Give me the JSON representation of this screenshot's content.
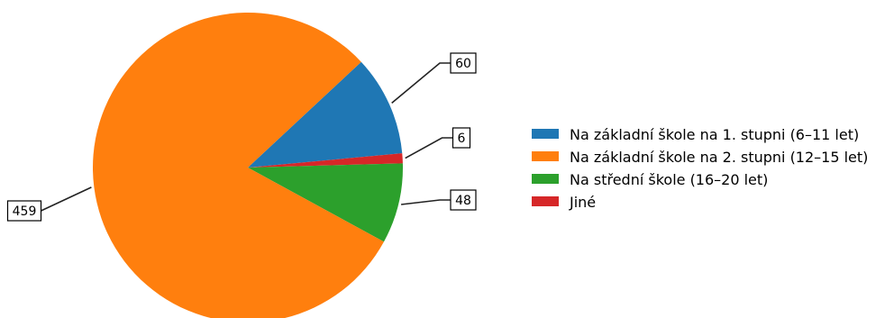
{
  "chart_data": {
    "type": "pie",
    "categories": [
      "Na základní škole na 1. stupni (6–11 let)",
      "Na základní škole na 2. stupni (12–15 let)",
      "Na střední škole (16–20 let)",
      "Jiné"
    ],
    "values": [
      60,
      459,
      48,
      6
    ],
    "data_labels": [
      "60",
      "459",
      "48",
      "6"
    ],
    "slice_order": [
      0,
      3,
      2,
      1
    ],
    "start_angle_deg": 43,
    "direction": "clockwise",
    "colors": [
      "#1f77b4",
      "#ff7f0e",
      "#2ca02c",
      "#d62728"
    ],
    "legend_position": "right",
    "title": "",
    "xlabel": "",
    "ylabel": ""
  }
}
